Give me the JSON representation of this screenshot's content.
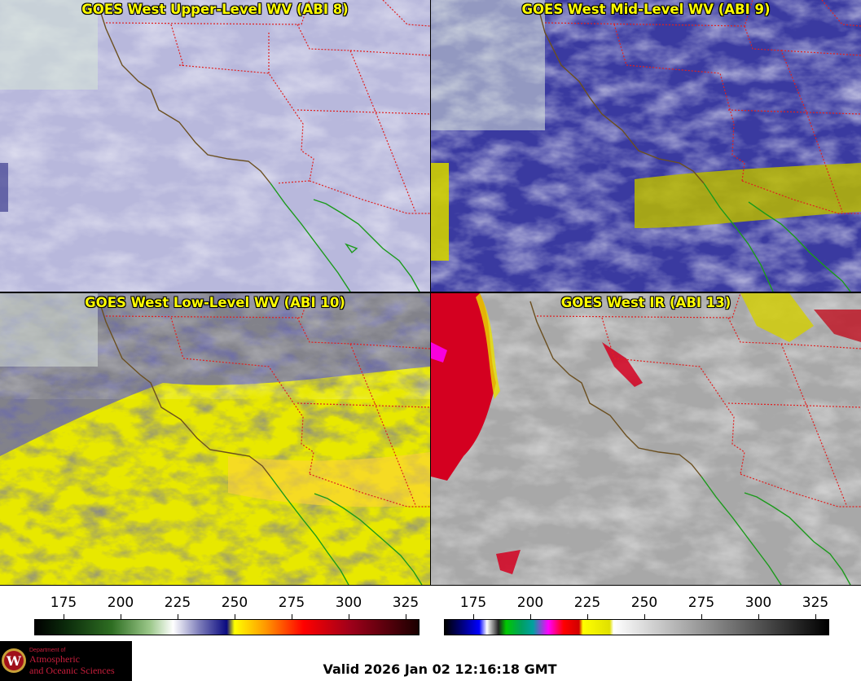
{
  "panels": [
    {
      "title": "GOES West Upper-Level WV (ABI 8)"
    },
    {
      "title": "GOES West Mid-Level WV (ABI 9)"
    },
    {
      "title": "GOES West Low-Level WV (ABI 10)"
    },
    {
      "title": "GOES West IR (ABI 13)"
    }
  ],
  "colorbars": [
    {
      "ticks": [
        "175",
        "200",
        "225",
        "250",
        "275",
        "300",
        "325"
      ]
    },
    {
      "ticks": [
        "175",
        "200",
        "225",
        "250",
        "275",
        "300",
        "325"
      ]
    }
  ],
  "logo": {
    "line1": "Department of",
    "line2": "Atmospheric",
    "line3": "and Oceanic Sciences"
  },
  "valid_time": "Valid 2026 Jan 02 12:16:18 GMT",
  "colors": {
    "coast": "#6b4f1f",
    "mexico_coast": "#1a9a1a",
    "state_borders": "#e02020",
    "title": "#ffff00"
  }
}
